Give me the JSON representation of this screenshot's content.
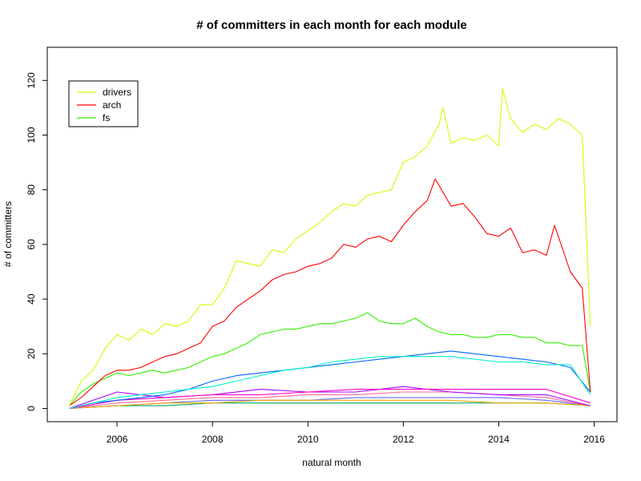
{
  "chart_data": {
    "type": "line",
    "title": "# of committers in each month for each module",
    "xlabel": "natural month",
    "ylabel": "# of committers",
    "xlim": [
      2005.0,
      2016.0
    ],
    "ylim": [
      0,
      125
    ],
    "x_ticks": [
      2006,
      2008,
      2010,
      2012,
      2014,
      2016
    ],
    "y_ticks": [
      0,
      20,
      40,
      60,
      80,
      100,
      120
    ],
    "grid": false,
    "legend_position": "top-left",
    "legend": [
      "drivers",
      "arch",
      "fs"
    ],
    "series": [
      {
        "name": "drivers",
        "color": "#cdff00",
        "points": [
          [
            2005.0,
            1
          ],
          [
            2005.25,
            10
          ],
          [
            2005.5,
            14
          ],
          [
            2005.75,
            22
          ],
          [
            2006.0,
            27
          ],
          [
            2006.25,
            25
          ],
          [
            2006.5,
            29
          ],
          [
            2006.75,
            27
          ],
          [
            2007.0,
            31
          ],
          [
            2007.25,
            30
          ],
          [
            2007.5,
            32
          ],
          [
            2007.75,
            38
          ],
          [
            2008.0,
            38
          ],
          [
            2008.25,
            44
          ],
          [
            2008.5,
            54
          ],
          [
            2008.75,
            53
          ],
          [
            2009.0,
            52
          ],
          [
            2009.25,
            58
          ],
          [
            2009.5,
            57
          ],
          [
            2009.75,
            62
          ],
          [
            2010.0,
            65
          ],
          [
            2010.25,
            68
          ],
          [
            2010.5,
            72
          ],
          [
            2010.75,
            75
          ],
          [
            2011.0,
            74
          ],
          [
            2011.25,
            78
          ],
          [
            2011.5,
            79
          ],
          [
            2011.75,
            80
          ],
          [
            2012.0,
            90
          ],
          [
            2012.25,
            92
          ],
          [
            2012.5,
            96
          ],
          [
            2012.75,
            104
          ],
          [
            2012.83,
            110
          ],
          [
            2013.0,
            97
          ],
          [
            2013.25,
            99
          ],
          [
            2013.5,
            98
          ],
          [
            2013.75,
            100
          ],
          [
            2014.0,
            96
          ],
          [
            2014.08,
            117
          ],
          [
            2014.25,
            106
          ],
          [
            2014.5,
            101
          ],
          [
            2014.75,
            104
          ],
          [
            2015.0,
            102
          ],
          [
            2015.25,
            106
          ],
          [
            2015.5,
            104
          ],
          [
            2015.75,
            100
          ],
          [
            2015.92,
            30
          ]
        ]
      },
      {
        "name": "arch",
        "color": "#ff0000",
        "points": [
          [
            2005.0,
            1
          ],
          [
            2005.25,
            4
          ],
          [
            2005.5,
            8
          ],
          [
            2005.75,
            12
          ],
          [
            2006.0,
            14
          ],
          [
            2006.25,
            14
          ],
          [
            2006.5,
            15
          ],
          [
            2006.75,
            17
          ],
          [
            2007.0,
            19
          ],
          [
            2007.25,
            20
          ],
          [
            2007.5,
            22
          ],
          [
            2007.75,
            24
          ],
          [
            2008.0,
            30
          ],
          [
            2008.25,
            32
          ],
          [
            2008.5,
            37
          ],
          [
            2008.75,
            40
          ],
          [
            2009.0,
            43
          ],
          [
            2009.25,
            47
          ],
          [
            2009.5,
            49
          ],
          [
            2009.75,
            50
          ],
          [
            2010.0,
            52
          ],
          [
            2010.25,
            53
          ],
          [
            2010.5,
            55
          ],
          [
            2010.75,
            60
          ],
          [
            2011.0,
            59
          ],
          [
            2011.25,
            62
          ],
          [
            2011.5,
            63
          ],
          [
            2011.75,
            61
          ],
          [
            2012.0,
            67
          ],
          [
            2012.25,
            72
          ],
          [
            2012.5,
            76
          ],
          [
            2012.67,
            84
          ],
          [
            2013.0,
            74
          ],
          [
            2013.25,
            75
          ],
          [
            2013.5,
            70
          ],
          [
            2013.75,
            64
          ],
          [
            2014.0,
            63
          ],
          [
            2014.25,
            66
          ],
          [
            2014.5,
            57
          ],
          [
            2014.75,
            58
          ],
          [
            2015.0,
            56
          ],
          [
            2015.17,
            67
          ],
          [
            2015.5,
            50
          ],
          [
            2015.75,
            44
          ],
          [
            2015.92,
            6
          ]
        ]
      },
      {
        "name": "fs",
        "color": "#33ee00",
        "points": [
          [
            2005.0,
            1
          ],
          [
            2005.25,
            6
          ],
          [
            2005.5,
            9
          ],
          [
            2005.75,
            11
          ],
          [
            2006.0,
            13
          ],
          [
            2006.25,
            12
          ],
          [
            2006.5,
            13
          ],
          [
            2006.75,
            14
          ],
          [
            2007.0,
            13
          ],
          [
            2007.25,
            14
          ],
          [
            2007.5,
            15
          ],
          [
            2007.75,
            17
          ],
          [
            2008.0,
            19
          ],
          [
            2008.25,
            20
          ],
          [
            2008.5,
            22
          ],
          [
            2008.75,
            24
          ],
          [
            2009.0,
            27
          ],
          [
            2009.25,
            28
          ],
          [
            2009.5,
            29
          ],
          [
            2009.75,
            29
          ],
          [
            2010.0,
            30
          ],
          [
            2010.25,
            31
          ],
          [
            2010.5,
            31
          ],
          [
            2010.75,
            32
          ],
          [
            2011.0,
            33
          ],
          [
            2011.25,
            35
          ],
          [
            2011.5,
            32
          ],
          [
            2011.75,
            31
          ],
          [
            2012.0,
            31
          ],
          [
            2012.25,
            33
          ],
          [
            2012.5,
            30
          ],
          [
            2012.75,
            28
          ],
          [
            2013.0,
            27
          ],
          [
            2013.25,
            27
          ],
          [
            2013.5,
            26
          ],
          [
            2013.75,
            26
          ],
          [
            2014.0,
            27
          ],
          [
            2014.25,
            27
          ],
          [
            2014.5,
            26
          ],
          [
            2014.75,
            26
          ],
          [
            2015.0,
            24
          ],
          [
            2015.25,
            24
          ],
          [
            2015.5,
            23
          ],
          [
            2015.75,
            23
          ],
          [
            2015.92,
            6
          ]
        ]
      },
      {
        "color": "#00eecc",
        "points": [
          [
            2005.0,
            0
          ],
          [
            2005.5,
            2
          ],
          [
            2006.0,
            4
          ],
          [
            2006.5,
            5
          ],
          [
            2007.0,
            6
          ],
          [
            2007.5,
            7
          ],
          [
            2008.0,
            8
          ],
          [
            2008.5,
            10
          ],
          [
            2009.0,
            12
          ],
          [
            2009.5,
            14
          ],
          [
            2010.0,
            15
          ],
          [
            2010.5,
            17
          ],
          [
            2011.0,
            18
          ],
          [
            2011.5,
            19
          ],
          [
            2012.0,
            19
          ],
          [
            2012.5,
            19
          ],
          [
            2013.0,
            19
          ],
          [
            2013.5,
            18
          ],
          [
            2014.0,
            17
          ],
          [
            2014.5,
            17
          ],
          [
            2015.0,
            16
          ],
          [
            2015.5,
            16
          ],
          [
            2015.92,
            5
          ]
        ]
      },
      {
        "color": "#0066ff",
        "points": [
          [
            2005.0,
            0
          ],
          [
            2005.5,
            2
          ],
          [
            2006.0,
            3
          ],
          [
            2006.5,
            4
          ],
          [
            2007.0,
            5
          ],
          [
            2007.5,
            7
          ],
          [
            2008.0,
            10
          ],
          [
            2008.5,
            12
          ],
          [
            2009.0,
            13
          ],
          [
            2009.5,
            14
          ],
          [
            2010.0,
            15
          ],
          [
            2010.5,
            16
          ],
          [
            2011.0,
            17
          ],
          [
            2011.5,
            18
          ],
          [
            2012.0,
            19
          ],
          [
            2012.5,
            20
          ],
          [
            2013.0,
            21
          ],
          [
            2013.5,
            20
          ],
          [
            2014.0,
            19
          ],
          [
            2014.5,
            18
          ],
          [
            2015.0,
            17
          ],
          [
            2015.5,
            15
          ],
          [
            2015.92,
            6
          ]
        ]
      },
      {
        "color": "#ff00cc",
        "points": [
          [
            2005.0,
            0
          ],
          [
            2006.0,
            3
          ],
          [
            2007.0,
            4
          ],
          [
            2008.0,
            5
          ],
          [
            2009.0,
            5
          ],
          [
            2010.0,
            6
          ],
          [
            2011.0,
            7
          ],
          [
            2012.0,
            7
          ],
          [
            2013.0,
            7
          ],
          [
            2014.0,
            7
          ],
          [
            2015.0,
            7
          ],
          [
            2015.92,
            2
          ]
        ]
      },
      {
        "color": "#aa00ff",
        "points": [
          [
            2005.0,
            0
          ],
          [
            2006.0,
            6
          ],
          [
            2007.0,
            4
          ],
          [
            2008.0,
            5
          ],
          [
            2009.0,
            7
          ],
          [
            2010.0,
            6
          ],
          [
            2011.0,
            6
          ],
          [
            2012.0,
            8
          ],
          [
            2013.0,
            6
          ],
          [
            2014.0,
            5
          ],
          [
            2015.0,
            5
          ],
          [
            2015.92,
            1
          ]
        ]
      },
      {
        "color": "#ff6699",
        "points": [
          [
            2005.0,
            0
          ],
          [
            2006.0,
            2
          ],
          [
            2007.0,
            3
          ],
          [
            2008.0,
            4
          ],
          [
            2009.0,
            4
          ],
          [
            2010.0,
            5
          ],
          [
            2011.0,
            5
          ],
          [
            2012.0,
            6
          ],
          [
            2013.0,
            6
          ],
          [
            2014.0,
            5
          ],
          [
            2015.0,
            4
          ],
          [
            2015.92,
            1
          ]
        ]
      },
      {
        "color": "#ffaa00",
        "points": [
          [
            2005.0,
            0
          ],
          [
            2006.0,
            1
          ],
          [
            2007.0,
            2
          ],
          [
            2008.0,
            2
          ],
          [
            2009.0,
            3
          ],
          [
            2010.0,
            3
          ],
          [
            2011.0,
            3
          ],
          [
            2012.0,
            3
          ],
          [
            2013.0,
            3
          ],
          [
            2014.0,
            2
          ],
          [
            2015.0,
            2
          ],
          [
            2015.92,
            1
          ]
        ]
      },
      {
        "color": "#00aa66",
        "points": [
          [
            2005.0,
            0
          ],
          [
            2006.0,
            1
          ],
          [
            2007.0,
            1
          ],
          [
            2008.0,
            2
          ],
          [
            2009.0,
            2
          ],
          [
            2010.0,
            2
          ],
          [
            2011.0,
            2
          ],
          [
            2012.0,
            2
          ],
          [
            2013.0,
            2
          ],
          [
            2014.0,
            2
          ],
          [
            2015.0,
            2
          ],
          [
            2015.92,
            1
          ]
        ]
      },
      {
        "color": "#6666ff",
        "points": [
          [
            2005.0,
            0
          ],
          [
            2006.0,
            1
          ],
          [
            2007.0,
            2
          ],
          [
            2008.0,
            3
          ],
          [
            2009.0,
            3
          ],
          [
            2010.0,
            3
          ],
          [
            2011.0,
            4
          ],
          [
            2012.0,
            4
          ],
          [
            2013.0,
            4
          ],
          [
            2014.0,
            4
          ],
          [
            2015.0,
            3
          ],
          [
            2015.92,
            1
          ]
        ]
      }
    ]
  }
}
